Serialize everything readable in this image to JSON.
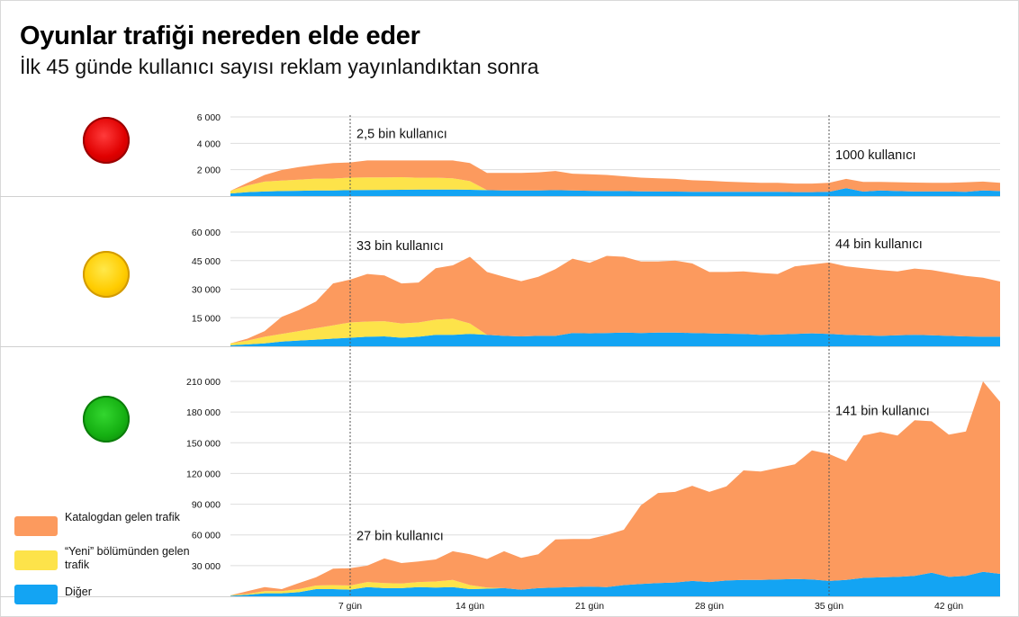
{
  "title": "Oyunlar trafiği nereden elde eder",
  "subtitle": "İlk 45 günde kullanıcı sayısı reklam yayınlandıktan sonra",
  "colors": {
    "catalog": "#fc9a5e",
    "new": "#fde34a",
    "other": "#13a4f3",
    "gridline": "#dddddd",
    "marker": "#555555"
  },
  "lights": [
    "red-light-icon",
    "yellow-light-icon",
    "green-light-icon"
  ],
  "legend": [
    {
      "name": "Katalogdan gelen trafik",
      "color": "#fc9a5e"
    },
    {
      "name": "“Yeni” bölümünden gelen trafik",
      "color": "#fde34a"
    },
    {
      "name": "Diğer",
      "color": "#13a4f3"
    }
  ],
  "chart_data": {
    "type": "area",
    "stacked": true,
    "x_labels": [
      {
        "day": 7,
        "label": "7 gün"
      },
      {
        "day": 14,
        "label": "14 gün"
      },
      {
        "day": 21,
        "label": "21 gün"
      },
      {
        "day": 28,
        "label": "28 gün"
      },
      {
        "day": 35,
        "label": "35 gün"
      },
      {
        "day": 42,
        "label": "42 gün"
      }
    ],
    "markers": [
      7,
      35
    ],
    "panels": [
      {
        "light": "red",
        "ylim": [
          0,
          6000
        ],
        "yticks": [
          {
            "value": 2000,
            "label": "2 000"
          },
          {
            "value": 4000,
            "label": "4 000"
          },
          {
            "value": 6000,
            "label": "6 000"
          }
        ],
        "annotations": [
          {
            "day": 7,
            "value": 4400,
            "text": "2,5 bin kullanıcı"
          },
          {
            "day": 35,
            "value": 2800,
            "text": "1000 kullanıcı"
          }
        ],
        "series": [
          {
            "key": "other",
            "values": [
              200,
              300,
              350,
              380,
              400,
              420,
              430,
              450,
              460,
              470,
              480,
              490,
              500,
              500,
              480,
              450,
              430,
              420,
              420,
              450,
              420,
              400,
              380,
              380,
              360,
              350,
              340,
              330,
              330,
              320,
              320,
              320,
              320,
              300,
              300,
              320,
              600,
              340,
              420,
              380,
              350,
              350,
              350,
              330,
              420,
              380
            ]
          },
          {
            "key": "new",
            "values": [
              200,
              500,
              750,
              800,
              850,
              900,
              900,
              950,
              950,
              950,
              950,
              900,
              900,
              850,
              650,
              0,
              0,
              0,
              0,
              0,
              0,
              0,
              0,
              0,
              0,
              0,
              0,
              0,
              0,
              0,
              0,
              0,
              0,
              0,
              0,
              0,
              0,
              0,
              0,
              0,
              0,
              0,
              0,
              0,
              0,
              0
            ]
          },
          {
            "key": "catalog",
            "values": [
              0,
              200,
              500,
              800,
              950,
              1050,
              1170,
              1150,
              1290,
              1280,
              1270,
              1310,
              1300,
              1350,
              1370,
              1300,
              1320,
              1330,
              1380,
              1450,
              1280,
              1250,
              1220,
              1120,
              1040,
              1000,
              960,
              870,
              830,
              770,
              730,
              680,
              680,
              650,
              650,
              680,
              700,
              740,
              660,
              670,
              670,
              650,
              650,
              720,
              680,
              620
            ]
          }
        ]
      },
      {
        "light": "yellow",
        "ylim": [
          0,
          60000
        ],
        "yticks": [
          {
            "value": 15000,
            "label": "15 000"
          },
          {
            "value": 30000,
            "label": "30 000"
          },
          {
            "value": 45000,
            "label": "45 000"
          },
          {
            "value": 60000,
            "label": "60 000"
          }
        ],
        "annotations": [
          {
            "day": 7,
            "value": 50500,
            "text": "33 bin kullanıcı"
          },
          {
            "day": 35,
            "value": 51500,
            "text": "44 bin kullanıcı"
          }
        ],
        "series": [
          {
            "key": "other",
            "values": [
              500,
              1000,
              1500,
              2500,
              3000,
              3500,
              4000,
              4500,
              5000,
              5200,
              4500,
              5000,
              6000,
              6000,
              6500,
              6000,
              5500,
              5200,
              5500,
              5500,
              7000,
              6800,
              7000,
              7200,
              7000,
              7200,
              7200,
              7000,
              6800,
              6600,
              6500,
              6000,
              6200,
              6500,
              6800,
              6500,
              6000,
              5800,
              5500,
              5800,
              6000,
              5800,
              5500,
              5200,
              5000,
              5000
            ]
          },
          {
            "key": "new",
            "values": [
              1000,
              2000,
              3500,
              4000,
              5000,
              6000,
              7000,
              8000,
              8000,
              8000,
              7500,
              7500,
              8000,
              8500,
              5500,
              0,
              0,
              0,
              0,
              0,
              0,
              0,
              0,
              0,
              0,
              0,
              0,
              0,
              0,
              0,
              0,
              0,
              0,
              0,
              0,
              0,
              0,
              0,
              0,
              0,
              0,
              0,
              0,
              0,
              0,
              0
            ]
          },
          {
            "key": "catalog",
            "values": [
              0,
              1000,
              3000,
              9000,
              11000,
              14000,
              22000,
              22500,
              25000,
              24000,
              21000,
              21000,
              27000,
              28000,
              35000,
              33000,
              31000,
              29000,
              31000,
              35000,
              39000,
              37000,
              40500,
              39800,
              37500,
              37300,
              37800,
              36500,
              32200,
              32400,
              32800,
              32500,
              31800,
              35500,
              36200,
              37500,
              36000,
              35200,
              34500,
              33500,
              34800,
              34200,
              33000,
              31800,
              31000,
              29000
            ]
          }
        ]
      },
      {
        "light": "green",
        "ylim": [
          0,
          210000
        ],
        "yticks": [
          {
            "value": 30000,
            "label": "30 000"
          },
          {
            "value": 60000,
            "label": "60 000"
          },
          {
            "value": 90000,
            "label": "90 000"
          },
          {
            "value": 120000,
            "label": "120 000"
          },
          {
            "value": 150000,
            "label": "150 000"
          },
          {
            "value": 180000,
            "label": "180 000"
          },
          {
            "value": 210000,
            "label": "210 000"
          }
        ],
        "annotations": [
          {
            "day": 7,
            "value": 55000,
            "text": "27 bin kullanıcı"
          },
          {
            "day": 35,
            "value": 177000,
            "text": "141 bin kullanıcı"
          }
        ],
        "series": [
          {
            "key": "other",
            "values": [
              500,
              1500,
              3000,
              3000,
              4000,
              7000,
              7000,
              6500,
              9000,
              8000,
              8000,
              9000,
              8500,
              9000,
              7000,
              7500,
              8000,
              6500,
              8000,
              8500,
              9000,
              9500,
              9000,
              11000,
              12000,
              13000,
              13500,
              15000,
              14000,
              15500,
              16000,
              16000,
              16500,
              17000,
              16500,
              15000,
              16000,
              18000,
              18500,
              19000,
              20000,
              23000,
              19000,
              20000,
              24000,
              22000
            ]
          },
          {
            "key": "new",
            "values": [
              500,
              1000,
              2000,
              2000,
              3000,
              3500,
              4000,
              4000,
              5000,
              5000,
              4500,
              5000,
              6000,
              7000,
              4000,
              1000,
              0,
              0,
              0,
              0,
              0,
              0,
              0,
              0,
              0,
              0,
              0,
              0,
              0,
              0,
              0,
              0,
              0,
              0,
              0,
              0,
              0,
              0,
              0,
              0,
              0,
              0,
              0,
              0,
              0,
              0
            ]
          },
          {
            "key": "catalog",
            "values": [
              0,
              2500,
              4000,
              2000,
              6000,
              8000,
              16000,
              17000,
              16000,
              24000,
              20000,
              20000,
              21500,
              28000,
              30000,
              28000,
              36000,
              31000,
              33000,
              47000,
              47000,
              46500,
              51000,
              54000,
              77000,
              88000,
              88500,
              93000,
              88000,
              92000,
              107000,
              106000,
              109000,
              112000,
              126000,
              124000,
              116000,
              139000,
              142000,
              138000,
              152000,
              148000,
              139000,
              141000,
              186000,
              168000
            ]
          }
        ]
      }
    ]
  }
}
